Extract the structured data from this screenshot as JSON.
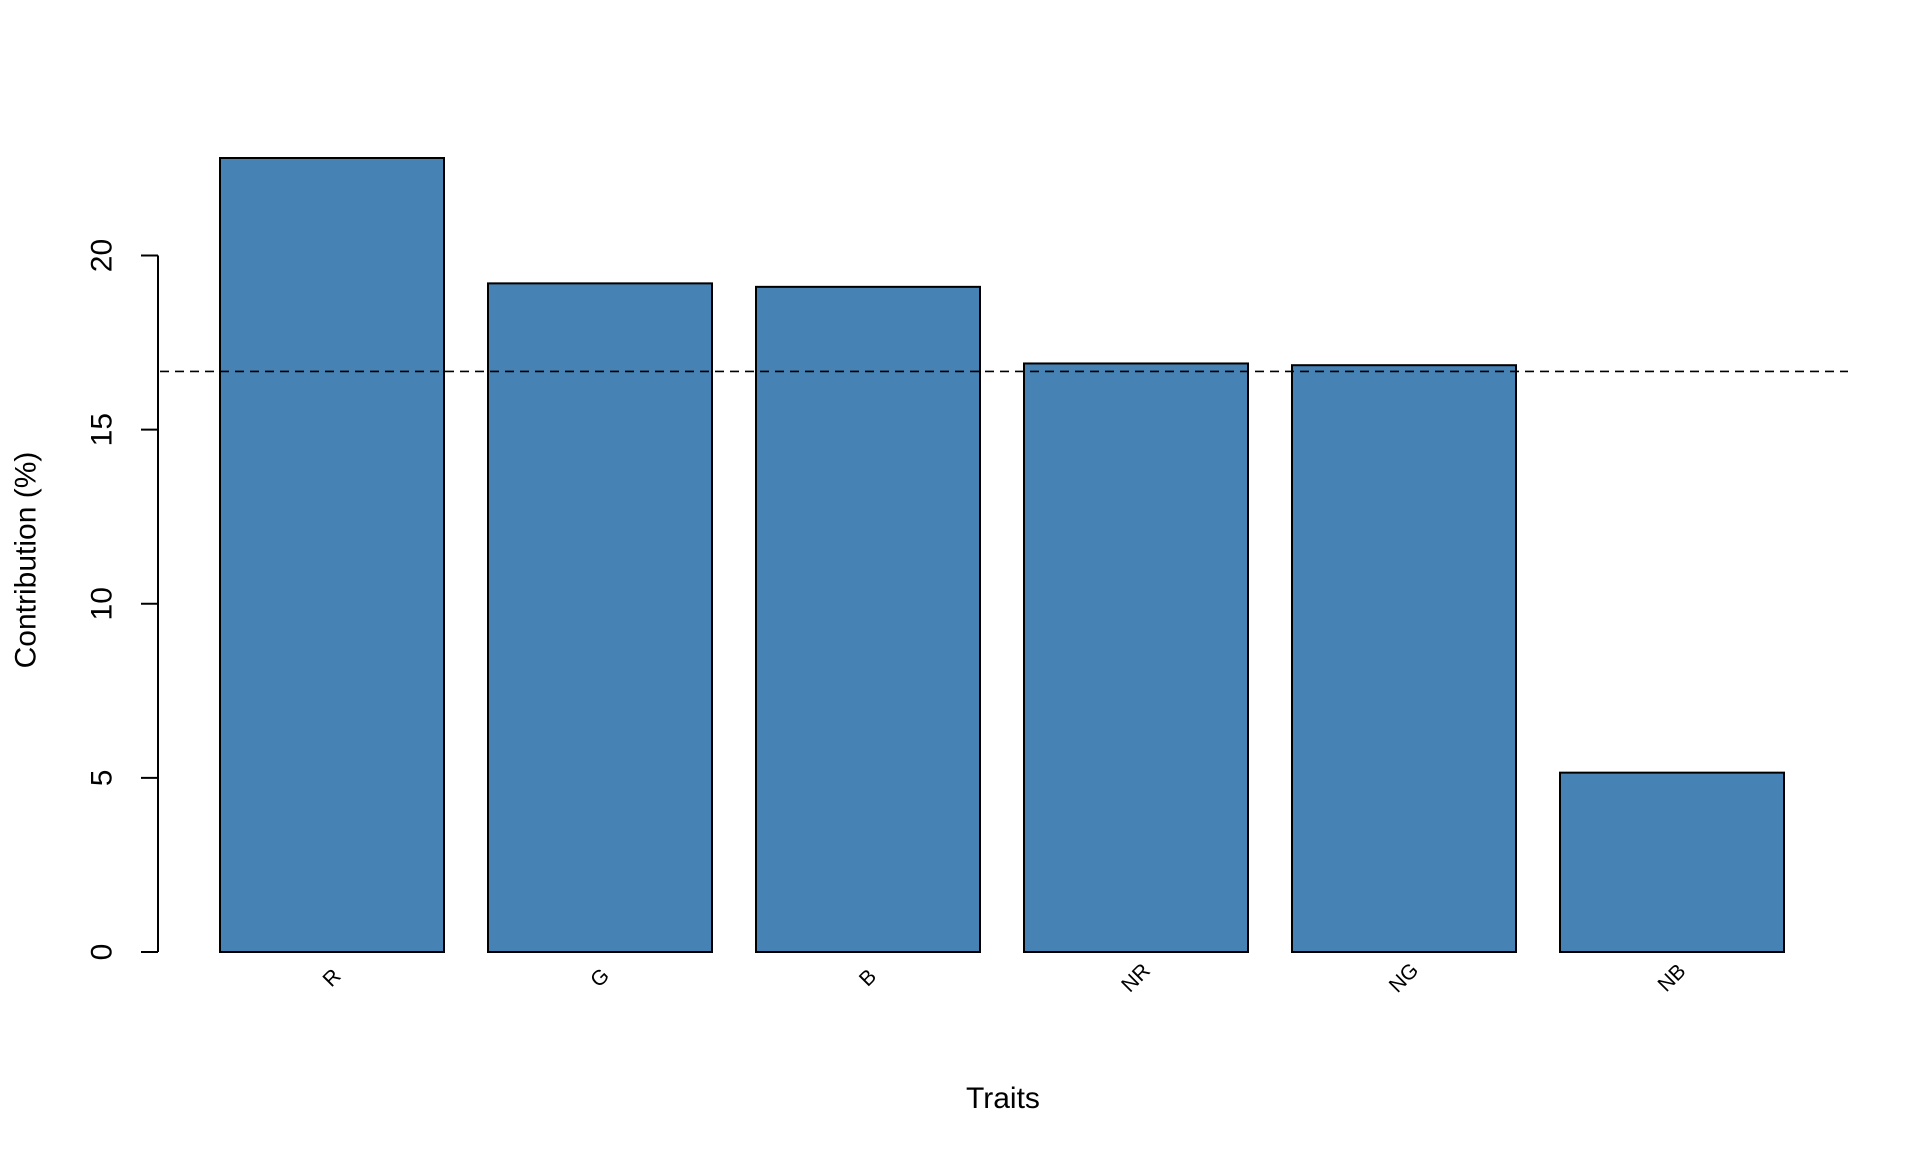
{
  "chart_data": {
    "type": "bar",
    "title": "",
    "xlabel": "Traits",
    "ylabel": "Contribution (%)",
    "categories": [
      "R",
      "G",
      "B",
      "NR",
      "NG",
      "NB"
    ],
    "values": [
      22.8,
      19.2,
      19.1,
      16.9,
      16.85,
      5.15
    ],
    "ylim": [
      0,
      22.8
    ],
    "yticks": [
      0,
      5,
      10,
      15,
      20
    ],
    "reference_line": {
      "value": 16.67,
      "style": "dashed"
    },
    "bar_color": "#4682B4",
    "grid": false,
    "legend": "none"
  }
}
